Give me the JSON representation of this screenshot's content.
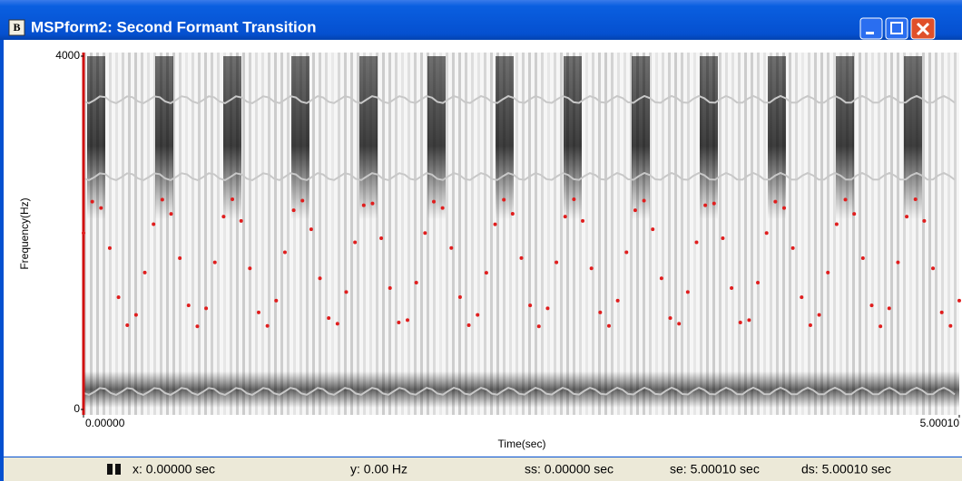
{
  "window": {
    "icon": "B",
    "title": "MSPform2: Second Formant Transition"
  },
  "chart_data": {
    "type": "scatter",
    "xlabel": "Time(sec)",
    "ylabel": "Frequency(Hz)",
    "xlim": [
      0,
      5.0001
    ],
    "ylim": [
      0,
      4000
    ],
    "xticks": [
      {
        "value": 0,
        "label": "0.00000"
      },
      {
        "value": 5.0001,
        "label": "5.00010"
      }
    ],
    "yticks": [
      0,
      4000
    ],
    "series": [
      {
        "color": "#e01e1e",
        "x": [
          0,
          0.05,
          0.1,
          0.15,
          0.2,
          0.25,
          0.3,
          0.35,
          0.4,
          0.45,
          0.5,
          0.55,
          0.6,
          0.65,
          0.7,
          0.75,
          0.8,
          0.85,
          0.9,
          0.95,
          1,
          1.05,
          1.1,
          1.15,
          1.2,
          1.25,
          1.3,
          1.35,
          1.4,
          1.45,
          1.5,
          1.55,
          1.6,
          1.65,
          1.7,
          1.75,
          1.8,
          1.85,
          1.9,
          1.95,
          2,
          2.05,
          2.1,
          2.15,
          2.2,
          2.25,
          2.3,
          2.35,
          2.4,
          2.45,
          2.5,
          2.55,
          2.6,
          2.65,
          2.7,
          2.75,
          2.8,
          2.85,
          2.9,
          2.95,
          3,
          3.05,
          3.1,
          3.15,
          3.2,
          3.25,
          3.3,
          3.35,
          3.4,
          3.45,
          3.5,
          3.55,
          3.6,
          3.65,
          3.7,
          3.75,
          3.8,
          3.85,
          3.9,
          3.95,
          4,
          4.05,
          4.1,
          4.15,
          4.2,
          4.25,
          4.3,
          4.35,
          4.4,
          4.45,
          4.5,
          4.55,
          4.6,
          4.65,
          4.7,
          4.75,
          4.8,
          4.85,
          4.9,
          4.95,
          5
        ],
        "values": [
          1998,
          2353,
          2281,
          1827,
          1270,
          954,
          1071,
          1550,
          2097,
          2376,
          2214,
          1713,
          1178,
          941,
          1145,
          1665,
          2183,
          2379,
          2134,
          1597,
          1099,
          946,
          1232,
          1780,
          2255,
          2364,
          2040,
          1484,
          1034,
          970,
          1330,
          1892,
          2312,
          2332,
          1938,
          1374,
          985,
          1011,
          1436,
          1998,
          2353,
          2281,
          1828,
          1272,
          954,
          1070,
          1548,
          2096,
          2375,
          2216,
          1714,
          1178,
          941,
          1145,
          1665,
          2183,
          2379,
          2134,
          1597,
          1099,
          946,
          1232,
          1780,
          2255,
          2364,
          2040,
          1484,
          1034,
          970,
          1330,
          1892,
          2312,
          2332,
          1938,
          1374,
          985,
          1011,
          1436,
          1998,
          2353,
          2281,
          1827,
          1270,
          954,
          1071,
          1550,
          2097,
          2376,
          2214,
          1713,
          1178,
          941,
          1145,
          1665,
          2183,
          2379,
          2134,
          1597,
          1099,
          946,
          1232
        ]
      }
    ]
  },
  "status_bar": {
    "x": "x:  0.00000 sec",
    "y": "y:  0.00 Hz",
    "ss": "ss:  0.00000 sec",
    "se": "se:  5.00010 sec",
    "ds": "ds:  5.00010 sec"
  }
}
